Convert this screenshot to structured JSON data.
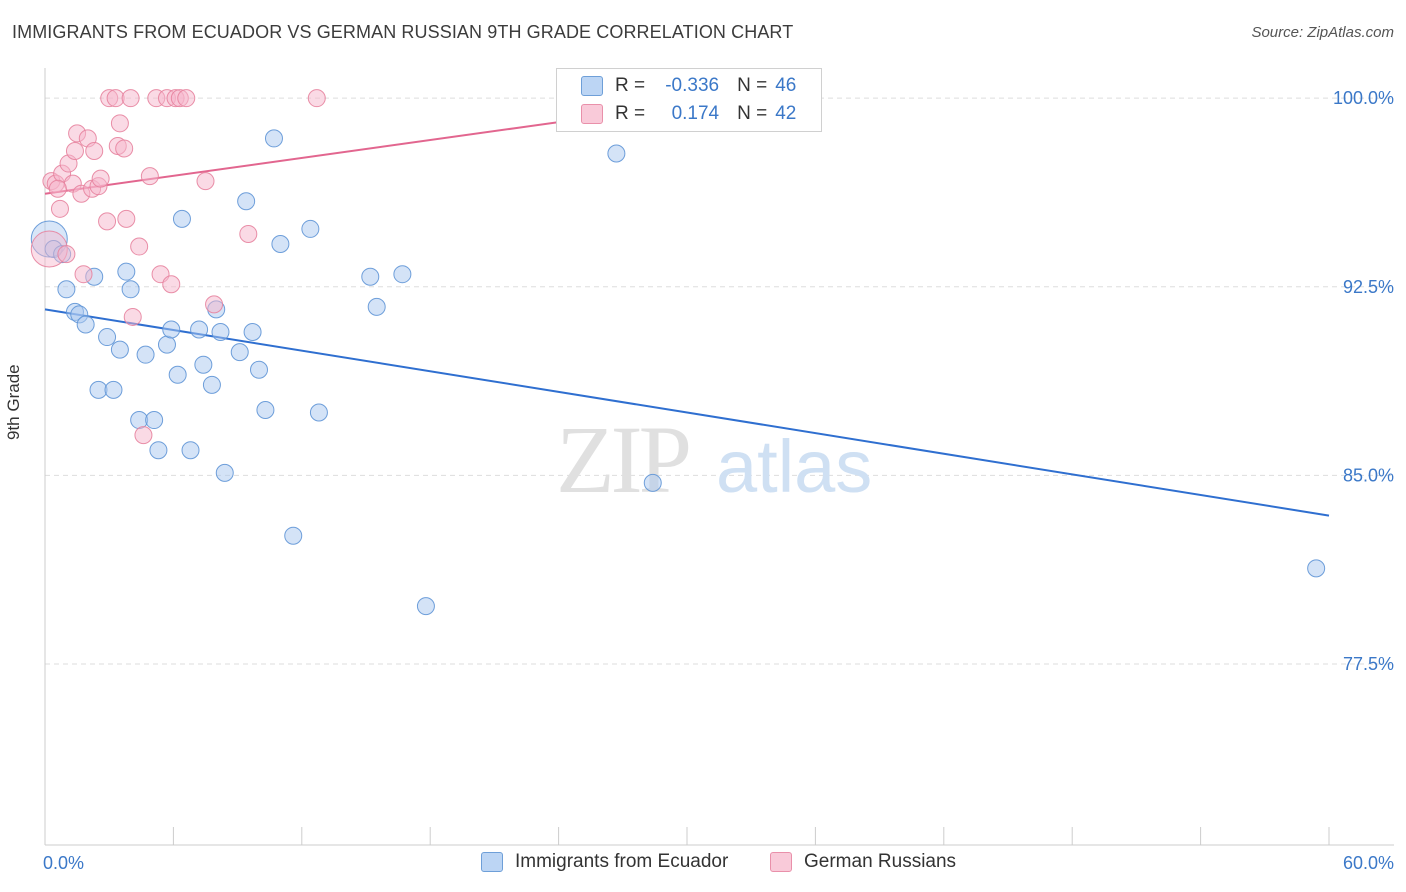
{
  "title": "IMMIGRANTS FROM ECUADOR VS GERMAN RUSSIAN 9TH GRADE CORRELATION CHART",
  "source": "Source: ZipAtlas.com",
  "watermark": {
    "zip": "ZIP",
    "atlas": "atlas"
  },
  "legend": {
    "rows": [
      {
        "r_label": "R =",
        "r_value": "-0.336",
        "n_label": "N =",
        "n_value": "46"
      },
      {
        "r_label": "R =",
        "r_value": "0.174",
        "n_label": "N =",
        "n_value": "42"
      }
    ]
  },
  "bottom_legend": [
    "Immigrants from Ecuador",
    "German Russians"
  ],
  "colors": {
    "blue_fill": "#a9c8f0",
    "blue_stroke": "#5f95d6",
    "blue_line": "#2f6fd0",
    "pink_fill": "#f6b6cb",
    "pink_stroke": "#e7839f",
    "pink_line": "#e2668f",
    "tick_label": "#3b78c8",
    "grid": "#dddddd"
  },
  "chart_data": {
    "type": "scatter",
    "title": "IMMIGRANTS FROM ECUADOR VS GERMAN RUSSIAN 9TH GRADE CORRELATION CHART",
    "xlabel": "",
    "ylabel": "9th Grade",
    "xlim": [
      0,
      60
    ],
    "ylim": [
      70.3,
      101.2
    ],
    "x_tick_labels": [
      "0.0%",
      "60.0%"
    ],
    "y_ticks": [
      77.5,
      85.0,
      92.5,
      100.0
    ],
    "y_tick_labels": [
      "77.5%",
      "85.0%",
      "92.5%",
      "100.0%"
    ],
    "grid": true,
    "series": [
      {
        "name": "Immigrants from Ecuador",
        "r": -0.336,
        "n": 46,
        "trend": {
          "x": [
            0,
            60
          ],
          "y": [
            91.6,
            83.4
          ]
        },
        "points": [
          {
            "x": 0.2,
            "y": 94.4,
            "big": true
          },
          {
            "x": 0.4,
            "y": 94.0
          },
          {
            "x": 0.8,
            "y": 93.8
          },
          {
            "x": 1.0,
            "y": 92.4
          },
          {
            "x": 1.4,
            "y": 91.5
          },
          {
            "x": 1.6,
            "y": 91.4
          },
          {
            "x": 1.9,
            "y": 91.0
          },
          {
            "x": 2.3,
            "y": 92.9
          },
          {
            "x": 2.5,
            "y": 88.4
          },
          {
            "x": 2.9,
            "y": 90.5
          },
          {
            "x": 3.2,
            "y": 88.4
          },
          {
            "x": 3.5,
            "y": 90.0
          },
          {
            "x": 3.8,
            "y": 93.1
          },
          {
            "x": 4.0,
            "y": 92.4
          },
          {
            "x": 4.4,
            "y": 87.2
          },
          {
            "x": 4.7,
            "y": 89.8
          },
          {
            "x": 5.1,
            "y": 87.2
          },
          {
            "x": 5.3,
            "y": 86.0
          },
          {
            "x": 5.7,
            "y": 90.2
          },
          {
            "x": 5.9,
            "y": 90.8
          },
          {
            "x": 6.2,
            "y": 89.0
          },
          {
            "x": 6.4,
            "y": 95.2
          },
          {
            "x": 6.8,
            "y": 86.0
          },
          {
            "x": 7.2,
            "y": 90.8
          },
          {
            "x": 7.4,
            "y": 89.4
          },
          {
            "x": 7.8,
            "y": 88.6
          },
          {
            "x": 8.0,
            "y": 91.6
          },
          {
            "x": 8.2,
            "y": 90.7
          },
          {
            "x": 8.4,
            "y": 85.1
          },
          {
            "x": 9.1,
            "y": 89.9
          },
          {
            "x": 9.4,
            "y": 95.9
          },
          {
            "x": 9.7,
            "y": 90.7
          },
          {
            "x": 10.0,
            "y": 89.2
          },
          {
            "x": 10.3,
            "y": 87.6
          },
          {
            "x": 10.7,
            "y": 98.4
          },
          {
            "x": 11.0,
            "y": 94.2
          },
          {
            "x": 11.6,
            "y": 82.6
          },
          {
            "x": 12.4,
            "y": 94.8
          },
          {
            "x": 12.8,
            "y": 87.5
          },
          {
            "x": 15.2,
            "y": 92.9
          },
          {
            "x": 15.5,
            "y": 91.7
          },
          {
            "x": 16.7,
            "y": 93.0
          },
          {
            "x": 17.8,
            "y": 79.8
          },
          {
            "x": 26.7,
            "y": 97.8
          },
          {
            "x": 28.4,
            "y": 84.7
          },
          {
            "x": 59.4,
            "y": 81.3
          }
        ]
      },
      {
        "name": "German Russians",
        "r": 0.174,
        "n": 42,
        "trend": {
          "x": [
            0,
            29.5
          ],
          "y": [
            96.2,
            99.7
          ]
        },
        "points": [
          {
            "x": 0.2,
            "y": 94.0,
            "big": true
          },
          {
            "x": 0.3,
            "y": 96.7
          },
          {
            "x": 0.5,
            "y": 96.6
          },
          {
            "x": 0.7,
            "y": 95.6
          },
          {
            "x": 0.8,
            "y": 97.0
          },
          {
            "x": 1.0,
            "y": 93.8
          },
          {
            "x": 1.1,
            "y": 97.4
          },
          {
            "x": 1.3,
            "y": 96.6
          },
          {
            "x": 1.4,
            "y": 97.9
          },
          {
            "x": 1.5,
            "y": 98.6
          },
          {
            "x": 1.7,
            "y": 96.2
          },
          {
            "x": 1.8,
            "y": 93.0
          },
          {
            "x": 2.0,
            "y": 98.4
          },
          {
            "x": 2.2,
            "y": 96.4
          },
          {
            "x": 2.3,
            "y": 97.9
          },
          {
            "x": 2.5,
            "y": 96.5
          },
          {
            "x": 2.6,
            "y": 96.8
          },
          {
            "x": 2.9,
            "y": 95.1
          },
          {
            "x": 3.0,
            "y": 100.0
          },
          {
            "x": 3.3,
            "y": 100.0
          },
          {
            "x": 3.4,
            "y": 98.1
          },
          {
            "x": 3.5,
            "y": 99.0
          },
          {
            "x": 3.7,
            "y": 98.0
          },
          {
            "x": 3.8,
            "y": 95.2
          },
          {
            "x": 4.0,
            "y": 100.0
          },
          {
            "x": 4.1,
            "y": 91.3
          },
          {
            "x": 4.4,
            "y": 94.1
          },
          {
            "x": 4.6,
            "y": 86.6
          },
          {
            "x": 4.9,
            "y": 96.9
          },
          {
            "x": 5.2,
            "y": 100.0
          },
          {
            "x": 5.4,
            "y": 93.0
          },
          {
            "x": 5.7,
            "y": 100.0
          },
          {
            "x": 5.9,
            "y": 92.6
          },
          {
            "x": 6.1,
            "y": 100.0
          },
          {
            "x": 6.3,
            "y": 100.0
          },
          {
            "x": 6.6,
            "y": 100.0
          },
          {
            "x": 7.5,
            "y": 96.7
          },
          {
            "x": 7.9,
            "y": 91.8
          },
          {
            "x": 9.5,
            "y": 94.6
          },
          {
            "x": 12.7,
            "y": 100.0
          },
          {
            "x": 28.0,
            "y": 99.9
          },
          {
            "x": 0.6,
            "y": 96.4
          }
        ]
      }
    ]
  }
}
